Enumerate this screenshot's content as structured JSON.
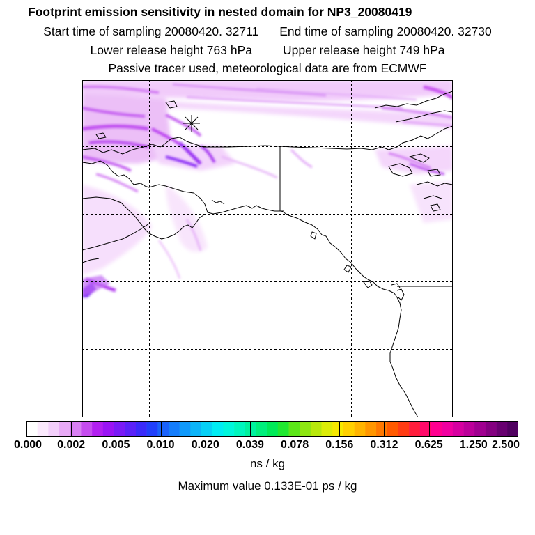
{
  "header": {
    "title": "Footprint emission sensitivity in nested domain for NP3_20080419",
    "start_time": "Start time of sampling 20080420. 32711",
    "end_time": "End time of sampling 20080420. 32730",
    "lower_release": "Lower release height  763 hPa",
    "upper_release": "Upper release height  749 hPa",
    "tracer_note": "Passive tracer used, meteorological data are from ECMWF"
  },
  "colorbar": {
    "tick_labels": [
      "0.000",
      "0.002",
      "0.005",
      "0.010",
      "0.020",
      "0.039",
      "0.078",
      "0.156",
      "0.312",
      "0.625",
      "1.250",
      "2.500"
    ],
    "colors": [
      "#ffffff",
      "#fbe9fd",
      "#f3cffb",
      "#e8aaf6",
      "#d97ff3",
      "#c64cef",
      "#b21ff0",
      "#9a14f4",
      "#7a1bf6",
      "#5b22f8",
      "#3b2bfa",
      "#2140fb",
      "#1a62fb",
      "#157dfb",
      "#1099fa",
      "#0cb4f8",
      "#06d0f6",
      "#00ecf3",
      "#00f6dc",
      "#00f6be",
      "#00f29e",
      "#00ef7c",
      "#00ea58",
      "#20e830",
      "#5ce619",
      "#8ee612",
      "#b8e80c",
      "#dcec08",
      "#f6e800",
      "#ffd000",
      "#ffb400",
      "#ff9600",
      "#ff7800",
      "#ff5a00",
      "#ff3c14",
      "#ff1e3c",
      "#ff0a6a",
      "#ff0090",
      "#f000a0",
      "#d600a0",
      "#bc009a",
      "#a00090",
      "#840080",
      "#680070",
      "#500060"
    ],
    "unit": "ns / kg",
    "max_value": "Maximum value  0.133E-01 ps / kg"
  }
}
